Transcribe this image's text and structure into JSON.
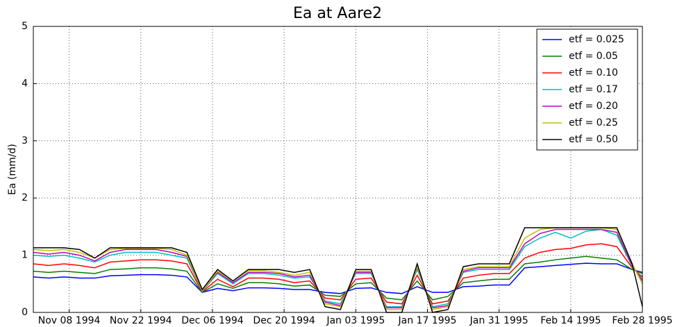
{
  "chart_data": {
    "type": "line",
    "title": "Ea at Aare2",
    "y_label": "Ea (mm/d)",
    "x": [
      "1994-11-01",
      "1994-11-04",
      "1994-11-07",
      "1994-11-10",
      "1994-11-13",
      "1994-11-16",
      "1994-11-19",
      "1994-11-22",
      "1994-11-25",
      "1994-11-28",
      "1994-12-01",
      "1994-12-04",
      "1994-12-07",
      "1994-12-10",
      "1994-12-13",
      "1994-12-16",
      "1994-12-19",
      "1994-12-22",
      "1994-12-25",
      "1994-12-28",
      "1994-12-31",
      "1995-01-03",
      "1995-01-06",
      "1995-01-09",
      "1995-01-12",
      "1995-01-15",
      "1995-01-18",
      "1995-01-21",
      "1995-01-24",
      "1995-01-27",
      "1995-01-30",
      "1995-02-02",
      "1995-02-05",
      "1995-02-08",
      "1995-02-11",
      "1995-02-14",
      "1995-02-17",
      "1995-02-20",
      "1995-02-23",
      "1995-02-26",
      "1995-02-28"
    ],
    "series": [
      {
        "name": "etf = 0.025",
        "color": "#0000ff",
        "values": [
          0.62,
          0.6,
          0.62,
          0.6,
          0.6,
          0.64,
          0.65,
          0.66,
          0.66,
          0.65,
          0.62,
          0.35,
          0.42,
          0.38,
          0.43,
          0.43,
          0.42,
          0.4,
          0.4,
          0.35,
          0.33,
          0.42,
          0.43,
          0.35,
          0.33,
          0.45,
          0.35,
          0.35,
          0.45,
          0.46,
          0.48,
          0.48,
          0.78,
          0.8,
          0.82,
          0.84,
          0.86,
          0.85,
          0.85,
          0.75,
          0.7
        ]
      },
      {
        "name": "etf = 0.05",
        "color": "#008000",
        "values": [
          0.72,
          0.7,
          0.72,
          0.7,
          0.68,
          0.75,
          0.76,
          0.78,
          0.78,
          0.76,
          0.72,
          0.35,
          0.5,
          0.42,
          0.52,
          0.52,
          0.5,
          0.46,
          0.48,
          0.3,
          0.28,
          0.5,
          0.52,
          0.25,
          0.22,
          0.55,
          0.22,
          0.28,
          0.52,
          0.55,
          0.58,
          0.58,
          0.85,
          0.88,
          0.92,
          0.95,
          0.98,
          0.95,
          0.92,
          0.75,
          0.68
        ]
      },
      {
        "name": "etf = 0.10",
        "color": "#ff0000",
        "values": [
          0.85,
          0.82,
          0.85,
          0.82,
          0.78,
          0.88,
          0.9,
          0.92,
          0.92,
          0.9,
          0.85,
          0.36,
          0.58,
          0.45,
          0.6,
          0.6,
          0.58,
          0.52,
          0.55,
          0.25,
          0.22,
          0.58,
          0.6,
          0.18,
          0.15,
          0.65,
          0.15,
          0.2,
          0.6,
          0.65,
          0.68,
          0.68,
          0.95,
          1.05,
          1.1,
          1.12,
          1.18,
          1.2,
          1.15,
          0.78,
          0.62
        ]
      },
      {
        "name": "etf = 0.17",
        "color": "#00bfbf",
        "values": [
          1.0,
          0.98,
          1.0,
          0.95,
          0.88,
          1.0,
          1.05,
          1.05,
          1.05,
          1.0,
          0.95,
          0.37,
          0.68,
          0.5,
          0.68,
          0.68,
          0.65,
          0.6,
          0.62,
          0.2,
          0.15,
          0.68,
          0.68,
          0.1,
          0.1,
          0.75,
          0.1,
          0.15,
          0.7,
          0.75,
          0.75,
          0.75,
          1.15,
          1.3,
          1.4,
          1.3,
          1.42,
          1.45,
          1.35,
          0.8,
          0.58
        ]
      },
      {
        "name": "etf = 0.20",
        "color": "#bf00bf",
        "values": [
          1.05,
          1.02,
          1.05,
          1.0,
          0.9,
          1.05,
          1.1,
          1.1,
          1.1,
          1.05,
          0.98,
          0.38,
          0.7,
          0.52,
          0.7,
          0.7,
          0.68,
          0.62,
          0.65,
          0.18,
          0.12,
          0.7,
          0.7,
          0.08,
          0.08,
          0.78,
          0.08,
          0.12,
          0.72,
          0.78,
          0.78,
          0.78,
          1.2,
          1.38,
          1.45,
          1.45,
          1.45,
          1.45,
          1.4,
          0.82,
          0.55
        ]
      },
      {
        "name": "etf = 0.25",
        "color": "#bfbf00",
        "values": [
          1.1,
          1.08,
          1.1,
          1.05,
          0.95,
          1.1,
          1.12,
          1.12,
          1.12,
          1.1,
          1.0,
          0.38,
          0.72,
          0.55,
          0.73,
          0.73,
          0.7,
          0.65,
          0.7,
          0.15,
          0.1,
          0.72,
          0.72,
          0.05,
          0.05,
          0.8,
          0.05,
          0.1,
          0.75,
          0.8,
          0.8,
          0.8,
          1.3,
          1.45,
          1.48,
          1.48,
          1.48,
          1.48,
          1.45,
          0.85,
          0.5
        ]
      },
      {
        "name": "etf = 0.50",
        "color": "#000000",
        "values": [
          1.13,
          1.13,
          1.13,
          1.1,
          0.95,
          1.13,
          1.13,
          1.13,
          1.13,
          1.13,
          1.05,
          0.4,
          0.75,
          0.55,
          0.75,
          0.75,
          0.75,
          0.7,
          0.75,
          0.1,
          0.05,
          0.75,
          0.75,
          0.0,
          0.0,
          0.85,
          0.0,
          0.05,
          0.8,
          0.85,
          0.85,
          0.85,
          1.48,
          1.48,
          1.48,
          1.48,
          1.48,
          1.48,
          1.48,
          0.85,
          0.1
        ]
      }
    ],
    "xlim": [
      "1994-11-01",
      "1995-02-28"
    ],
    "xticks": [
      {
        "value": "1994-11-08",
        "label": "Nov 08 1994"
      },
      {
        "value": "1994-11-22",
        "label": "Nov 22 1994"
      },
      {
        "value": "1994-12-06",
        "label": "Dec 06 1994"
      },
      {
        "value": "1994-12-20",
        "label": "Dec 20 1994"
      },
      {
        "value": "1995-01-03",
        "label": "Jan 03 1995"
      },
      {
        "value": "1995-01-17",
        "label": "Jan 17 1995"
      },
      {
        "value": "1995-01-31",
        "label": "Jan 31 1995"
      },
      {
        "value": "1995-02-14",
        "label": "Feb 14 1995"
      },
      {
        "value": "1995-02-28",
        "label": "Feb 28 1995"
      }
    ],
    "ylim": [
      0,
      5
    ],
    "yticks": [
      0,
      1,
      2,
      3,
      4,
      5
    ],
    "grid": true,
    "legend": "upper right"
  }
}
